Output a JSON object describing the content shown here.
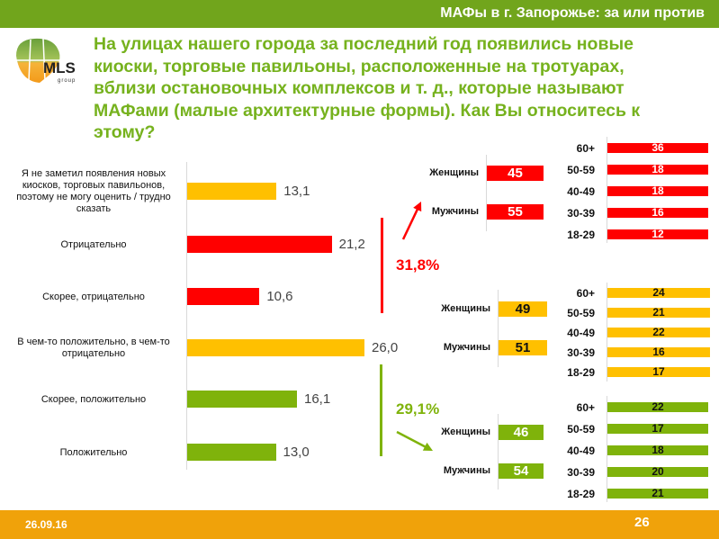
{
  "header": {
    "title": "МАФы в г. Запорожье: за или против"
  },
  "logo": {
    "text": "MLS",
    "sub": "group"
  },
  "question": "На улицах нашего города за последний год появились новые киоски, торговые павильоны, расположенные на тротуарах, вблизи остановочных комплексов и т. д., которые называют МАФами (малые архитектурные формы). Как Вы относитесь к этому?",
  "colors": {
    "red": "#ff0000",
    "yellow": "#ffc000",
    "green": "#7fb30b",
    "title_green": "#76b21e"
  },
  "chart_data": {
    "type": "bar",
    "orientation": "horizontal",
    "categories": [
      "Я не заметил появления новых киосков, торговых павильонов, поэтому не могу оценить / трудно сказать",
      "Отрицательно",
      "Скорее, отрицательно",
      "В чем-то положительно, в чем-то отрицательно",
      "Скорее, положительно",
      "Положительно"
    ],
    "values": [
      13.1,
      21.2,
      10.6,
      26.0,
      16.1,
      13.0
    ],
    "value_labels": [
      "13,1",
      "21,2",
      "10,6",
      "26,0",
      "16,1",
      "13,0"
    ],
    "bar_colors": [
      "yellow",
      "red",
      "red",
      "yellow",
      "green",
      "green"
    ],
    "xlim": [
      0,
      26
    ],
    "annotations": {
      "negative_total": "31,8%",
      "positive_total": "29,1%"
    },
    "groups": [
      {
        "color": "red",
        "gender": [
          {
            "label": "Женщины",
            "value": 45
          },
          {
            "label": "Мужчины",
            "value": 55
          }
        ],
        "age": [
          {
            "label": "60+",
            "value": 36
          },
          {
            "label": "50-59",
            "value": 18
          },
          {
            "label": "40-49",
            "value": 18
          },
          {
            "label": "30-39",
            "value": 16
          },
          {
            "label": "18-29",
            "value": 12
          }
        ]
      },
      {
        "color": "yellow",
        "gender": [
          {
            "label": "Женщины",
            "value": 49
          },
          {
            "label": "Мужчины",
            "value": 51
          }
        ],
        "age": [
          {
            "label": "60+",
            "value": 24
          },
          {
            "label": "50-59",
            "value": 21
          },
          {
            "label": "40-49",
            "value": 22
          },
          {
            "label": "30-39",
            "value": 16
          },
          {
            "label": "18-29",
            "value": 17
          }
        ]
      },
      {
        "color": "green",
        "gender": [
          {
            "label": "Женщины",
            "value": 46
          },
          {
            "label": "Мужчины",
            "value": 54
          }
        ],
        "age": [
          {
            "label": "60+",
            "value": 22
          },
          {
            "label": "50-59",
            "value": 17
          },
          {
            "label": "40-49",
            "value": 18
          },
          {
            "label": "30-39",
            "value": 20
          },
          {
            "label": "18-29",
            "value": 21
          }
        ]
      }
    ]
  },
  "footer": {
    "date": "26.09.16",
    "page": "26"
  }
}
